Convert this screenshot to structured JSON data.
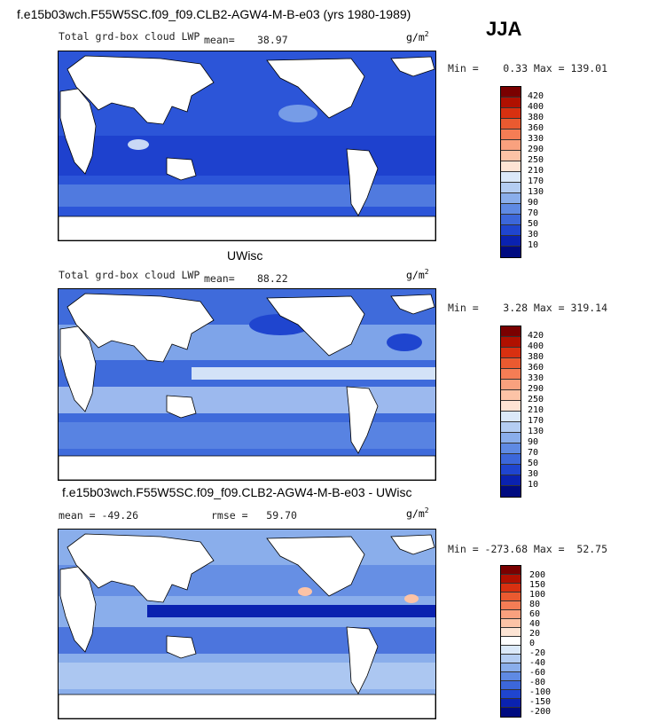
{
  "header": {
    "title": "f.e15b03wch.F55W5SC.f09_f09.CLB2-AGW4-M-B-e03 (yrs 1980-1989)",
    "season": "JJA"
  },
  "panels": [
    {
      "label": "Total grd-box cloud LWP",
      "mean_label": "mean=",
      "mean_value": "38.97",
      "unit": "g/m",
      "unit_sup": "2",
      "minmax": "Min =    0.33 Max = 139.01",
      "colorbar_labels": [
        "420",
        "400",
        "380",
        "360",
        "330",
        "290",
        "250",
        "210",
        "170",
        "130",
        "90",
        "70",
        "50",
        "30",
        "10"
      ]
    },
    {
      "heading": "UWisc",
      "label": "Total grd-box cloud LWP",
      "mean_label": "mean=",
      "mean_value": "88.22",
      "unit": "g/m",
      "unit_sup": "2",
      "minmax": "Min =    3.28 Max = 319.14",
      "colorbar_labels": [
        "420",
        "400",
        "380",
        "360",
        "330",
        "290",
        "250",
        "210",
        "170",
        "130",
        "90",
        "70",
        "50",
        "30",
        "10"
      ]
    },
    {
      "heading": "f.e15b03wch.F55W5SC.f09_f09.CLB2-AGW4-M-B-e03 - UWisc",
      "mean_text": "mean = -49.26",
      "rmse_text": "rmse =   59.70",
      "unit": "g/m",
      "unit_sup": "2",
      "minmax": "Min = -273.68 Max =  52.75",
      "colorbar_labels": [
        "200",
        "150",
        "100",
        "80",
        "60",
        "40",
        "20",
        "0",
        "-20",
        "-40",
        "-60",
        "-80",
        "-100",
        "-150",
        "-200"
      ]
    }
  ],
  "colors": {
    "scale_abs": [
      "#7a0000",
      "#b01000",
      "#d83010",
      "#ea5a30",
      "#f57d55",
      "#f9a17e",
      "#fcc3a6",
      "#fde4d4",
      "#dbe9f9",
      "#b4cdf2",
      "#8aaeeb",
      "#5f8ae3",
      "#3c67da",
      "#1f45cf",
      "#0a22b0",
      "#000b80"
    ],
    "scale_diff": [
      "#7a0000",
      "#b01000",
      "#d83010",
      "#ea5a30",
      "#f57d55",
      "#f9a17e",
      "#fcc3a6",
      "#fde4d4",
      "#ffffff",
      "#dbe9f9",
      "#b4cdf2",
      "#8aaeeb",
      "#5f8ae3",
      "#3c67da",
      "#1f45cf",
      "#0a22b0",
      "#000b80"
    ]
  },
  "chart_data": [
    {
      "type": "heatmap",
      "title": "Total grd-box cloud LWP",
      "mean": 38.97,
      "min": 0.33,
      "max": 139.01,
      "levels": [
        10,
        30,
        50,
        70,
        90,
        130,
        170,
        210,
        250,
        290,
        330,
        360,
        380,
        400,
        420
      ]
    },
    {
      "type": "heatmap",
      "title": "Total grd-box cloud LWP",
      "mean": 88.22,
      "min": 3.28,
      "max": 319.14,
      "levels": [
        10,
        30,
        50,
        70,
        90,
        130,
        170,
        210,
        250,
        290,
        330,
        360,
        380,
        400,
        420
      ]
    },
    {
      "type": "heatmap",
      "title": "f.e15b03wch.F55W5SC.f09_f09.CLB2-AGW4-M-B-e03 - UWisc",
      "mean": -49.26,
      "rmse": 59.7,
      "min": -273.68,
      "max": 52.75,
      "levels": [
        -200,
        -150,
        -100,
        -80,
        -60,
        -40,
        -20,
        0,
        20,
        40,
        60,
        80,
        100,
        150,
        200
      ]
    }
  ]
}
